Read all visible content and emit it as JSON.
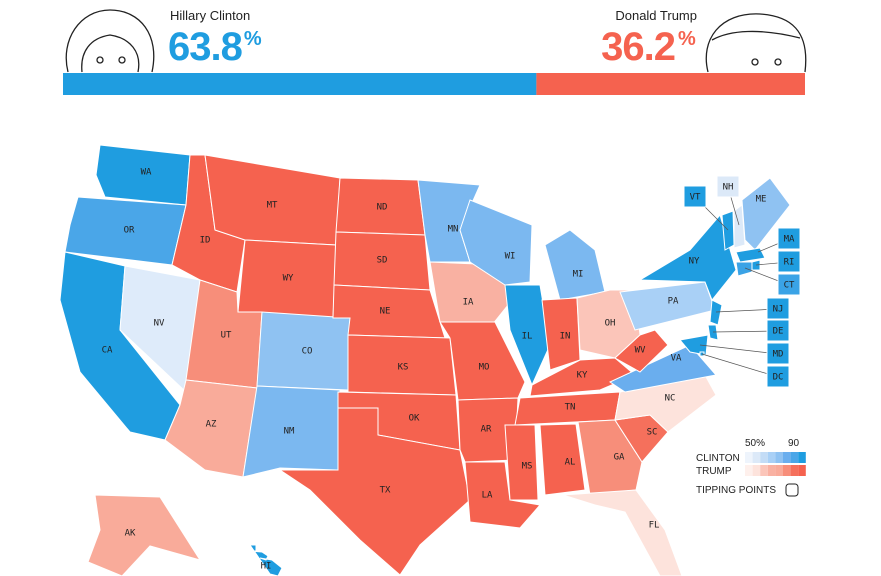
{
  "header": {
    "candidates": [
      {
        "name": "Hillary Clinton",
        "share": 63.8,
        "unit": "%",
        "color": "#1f9de0"
      },
      {
        "name": "Donald Trump",
        "share": 36.2,
        "unit": "%",
        "color": "#f5624f"
      }
    ]
  },
  "map": {
    "states": [
      {
        "label": "WA",
        "color": "#1f9de0"
      },
      {
        "label": "OR",
        "color": "#4aa6e8"
      },
      {
        "label": "CA",
        "color": "#1f9de0"
      },
      {
        "label": "NV",
        "color": "#deebfa"
      },
      {
        "label": "ID",
        "color": "#f5624f"
      },
      {
        "label": "MT",
        "color": "#f5624f"
      },
      {
        "label": "WY",
        "color": "#f5624f"
      },
      {
        "label": "UT",
        "color": "#f78e7a"
      },
      {
        "label": "AZ",
        "color": "#f9ab9a"
      },
      {
        "label": "CO",
        "color": "#8fc2f2"
      },
      {
        "label": "NM",
        "color": "#7bb8f0"
      },
      {
        "label": "ND",
        "color": "#f5624f"
      },
      {
        "label": "SD",
        "color": "#f5624f"
      },
      {
        "label": "NE",
        "color": "#f5624f"
      },
      {
        "label": "KS",
        "color": "#f5624f"
      },
      {
        "label": "OK",
        "color": "#f5624f"
      },
      {
        "label": "TX",
        "color": "#f5624f"
      },
      {
        "label": "MN",
        "color": "#7bb8f0"
      },
      {
        "label": "IA",
        "color": "#f9b1a2"
      },
      {
        "label": "MO",
        "color": "#f5624f"
      },
      {
        "label": "AR",
        "color": "#f5624f"
      },
      {
        "label": "LA",
        "color": "#f5624f"
      },
      {
        "label": "WI",
        "color": "#7bb8f0"
      },
      {
        "label": "IL",
        "color": "#1f9de0"
      },
      {
        "label": "MI",
        "color": "#7bb8f0"
      },
      {
        "label": "IN",
        "color": "#f5624f"
      },
      {
        "label": "OH",
        "color": "#fbc5b9"
      },
      {
        "label": "KY",
        "color": "#f5624f"
      },
      {
        "label": "TN",
        "color": "#f5624f"
      },
      {
        "label": "MS",
        "color": "#f5624f"
      },
      {
        "label": "AL",
        "color": "#f5624f"
      },
      {
        "label": "GA",
        "color": "#f78e7a"
      },
      {
        "label": "FL",
        "color": "#fde3dc"
      },
      {
        "label": "SC",
        "color": "#f5705c"
      },
      {
        "label": "NC",
        "color": "#fde3dc"
      },
      {
        "label": "VA",
        "color": "#6aaeee"
      },
      {
        "label": "WV",
        "color": "#f5624f"
      },
      {
        "label": "PA",
        "color": "#a9d0f6"
      },
      {
        "label": "NY",
        "color": "#1f9de0"
      },
      {
        "label": "VT",
        "color": "#1f9de0"
      },
      {
        "label": "NH",
        "color": "#dce9f8"
      },
      {
        "label": "ME",
        "color": "#8fc2f2"
      },
      {
        "label": "MA",
        "color": "#1f9de0"
      },
      {
        "label": "RI",
        "color": "#1f9de0"
      },
      {
        "label": "CT",
        "color": "#3aa3e6"
      },
      {
        "label": "NJ",
        "color": "#1f9de0"
      },
      {
        "label": "DE",
        "color": "#1f9de0"
      },
      {
        "label": "MD",
        "color": "#1f9de0"
      },
      {
        "label": "DC",
        "color": "#1f9de0"
      },
      {
        "label": "AK",
        "color": "#f9ab9a"
      },
      {
        "label": "HI",
        "color": "#1f9de0"
      }
    ]
  },
  "legend": {
    "low": "50%",
    "high": "90",
    "clinton": "CLINTON",
    "trump": "TRUMP",
    "tipping": "TIPPING POINTS"
  }
}
